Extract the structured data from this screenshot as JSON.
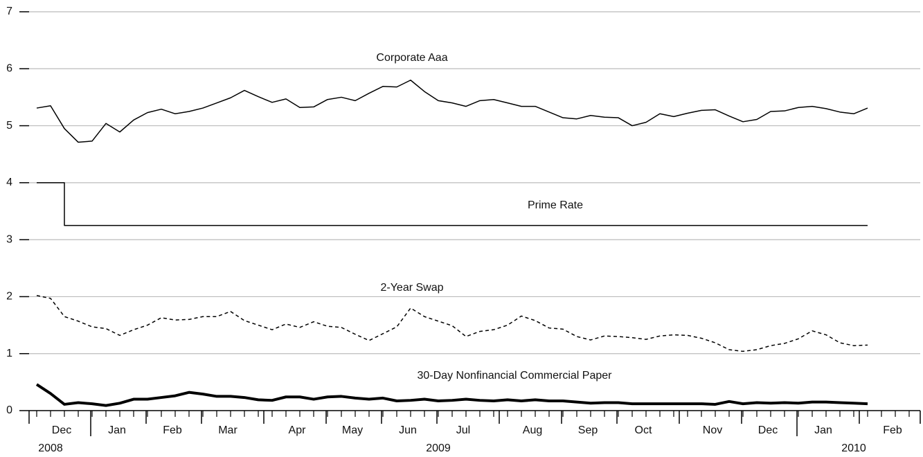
{
  "chart_data": {
    "type": "line",
    "categories": [
      null,
      null,
      "Dec",
      null,
      null,
      null,
      "Jan",
      null,
      null,
      null,
      "Feb",
      null,
      null,
      null,
      "Mar",
      null,
      null,
      null,
      null,
      "Apr",
      null,
      null,
      null,
      "May",
      null,
      null,
      null,
      "Jun",
      null,
      null,
      null,
      "Jul",
      null,
      null,
      null,
      null,
      "Aug",
      null,
      null,
      null,
      "Sep",
      null,
      null,
      null,
      "Oct",
      null,
      null,
      null,
      null,
      "Nov",
      null,
      null,
      null,
      "Dec",
      null,
      null,
      null,
      "Jan",
      null,
      null,
      null,
      null,
      "Feb",
      null
    ],
    "year_labels": [
      null,
      "2008",
      null,
      null,
      null,
      null,
      null,
      null,
      null,
      null,
      null,
      null,
      null,
      null,
      null,
      null,
      null,
      null,
      null,
      null,
      null,
      null,
      null,
      null,
      null,
      null,
      null,
      null,
      null,
      "2009",
      null,
      null,
      null,
      null,
      null,
      null,
      null,
      null,
      null,
      null,
      null,
      null,
      null,
      null,
      null,
      null,
      null,
      null,
      null,
      null,
      null,
      null,
      null,
      null,
      null,
      null,
      null,
      null,
      null,
      "2010",
      null,
      null,
      null,
      null
    ],
    "series": [
      {
        "name": "Corporate Aaa",
        "color": "#000000",
        "width": 1.5,
        "dash": "none",
        "values": [
          5.31,
          5.35,
          4.95,
          4.71,
          4.73,
          5.04,
          4.89,
          5.1,
          5.23,
          5.29,
          5.21,
          5.25,
          5.31,
          5.4,
          5.49,
          5.62,
          5.51,
          5.41,
          5.47,
          5.32,
          5.33,
          5.46,
          5.5,
          5.44,
          5.57,
          5.69,
          5.68,
          5.8,
          5.6,
          5.44,
          5.4,
          5.34,
          5.44,
          5.46,
          5.4,
          5.34,
          5.34,
          5.24,
          5.14,
          5.12,
          5.18,
          5.15,
          5.14,
          5.0,
          5.06,
          5.21,
          5.16,
          5.22,
          5.27,
          5.28,
          5.17,
          5.07,
          5.11,
          5.25,
          5.26,
          5.32,
          5.34,
          5.3,
          5.24,
          5.21,
          5.31,
          null,
          null,
          null
        ]
      },
      {
        "name": "Prime Rate",
        "color": "#000000",
        "width": 1.5,
        "dash": "none",
        "step": true,
        "values": [
          4,
          4,
          3.25,
          3.25,
          3.25,
          3.25,
          3.25,
          3.25,
          3.25,
          3.25,
          3.25,
          3.25,
          3.25,
          3.25,
          3.25,
          3.25,
          3.25,
          3.25,
          3.25,
          3.25,
          3.25,
          3.25,
          3.25,
          3.25,
          3.25,
          3.25,
          3.25,
          3.25,
          3.25,
          3.25,
          3.25,
          3.25,
          3.25,
          3.25,
          3.25,
          3.25,
          3.25,
          3.25,
          3.25,
          3.25,
          3.25,
          3.25,
          3.25,
          3.25,
          3.25,
          3.25,
          3.25,
          3.25,
          3.25,
          3.25,
          3.25,
          3.25,
          3.25,
          3.25,
          3.25,
          3.25,
          3.25,
          3.25,
          3.25,
          3.25,
          3.25,
          null,
          null,
          null
        ]
      },
      {
        "name": "2-Year Swap",
        "color": "#000000",
        "width": 1.5,
        "dash": "5 4",
        "values": [
          2.02,
          1.97,
          1.65,
          1.57,
          1.47,
          1.44,
          1.32,
          1.42,
          1.5,
          1.63,
          1.59,
          1.6,
          1.65,
          1.65,
          1.74,
          1.58,
          1.5,
          1.42,
          1.52,
          1.46,
          1.56,
          1.48,
          1.46,
          1.34,
          1.23,
          1.35,
          1.47,
          1.8,
          1.65,
          1.57,
          1.49,
          1.3,
          1.39,
          1.42,
          1.5,
          1.66,
          1.58,
          1.45,
          1.43,
          1.3,
          1.24,
          1.31,
          1.3,
          1.28,
          1.25,
          1.31,
          1.33,
          1.32,
          1.27,
          1.19,
          1.07,
          1.04,
          1.07,
          1.14,
          1.18,
          1.26,
          1.4,
          1.33,
          1.19,
          1.14,
          1.15,
          null,
          null,
          null
        ]
      },
      {
        "name": "30-Day Nonfinancial Commercial Paper",
        "color": "#000000",
        "width": 4,
        "dash": "none",
        "values": [
          0.46,
          0.3,
          0.11,
          0.14,
          0.12,
          0.09,
          0.13,
          0.2,
          0.2,
          0.23,
          0.26,
          0.32,
          0.29,
          0.25,
          0.25,
          0.23,
          0.19,
          0.18,
          0.24,
          0.24,
          0.2,
          0.24,
          0.25,
          0.22,
          0.2,
          0.22,
          0.17,
          0.18,
          0.2,
          0.17,
          0.18,
          0.2,
          0.18,
          0.17,
          0.19,
          0.17,
          0.19,
          0.17,
          0.17,
          0.15,
          0.13,
          0.14,
          0.14,
          0.12,
          0.12,
          0.12,
          0.12,
          0.12,
          0.12,
          0.11,
          0.16,
          0.12,
          0.14,
          0.13,
          0.14,
          0.13,
          0.15,
          0.15,
          0.14,
          0.13,
          0.12,
          null,
          null,
          null
        ]
      }
    ],
    "ylim": [
      0,
      7
    ],
    "yticks": [
      0,
      1,
      2,
      3,
      4,
      5,
      6,
      7
    ],
    "grid": true
  }
}
